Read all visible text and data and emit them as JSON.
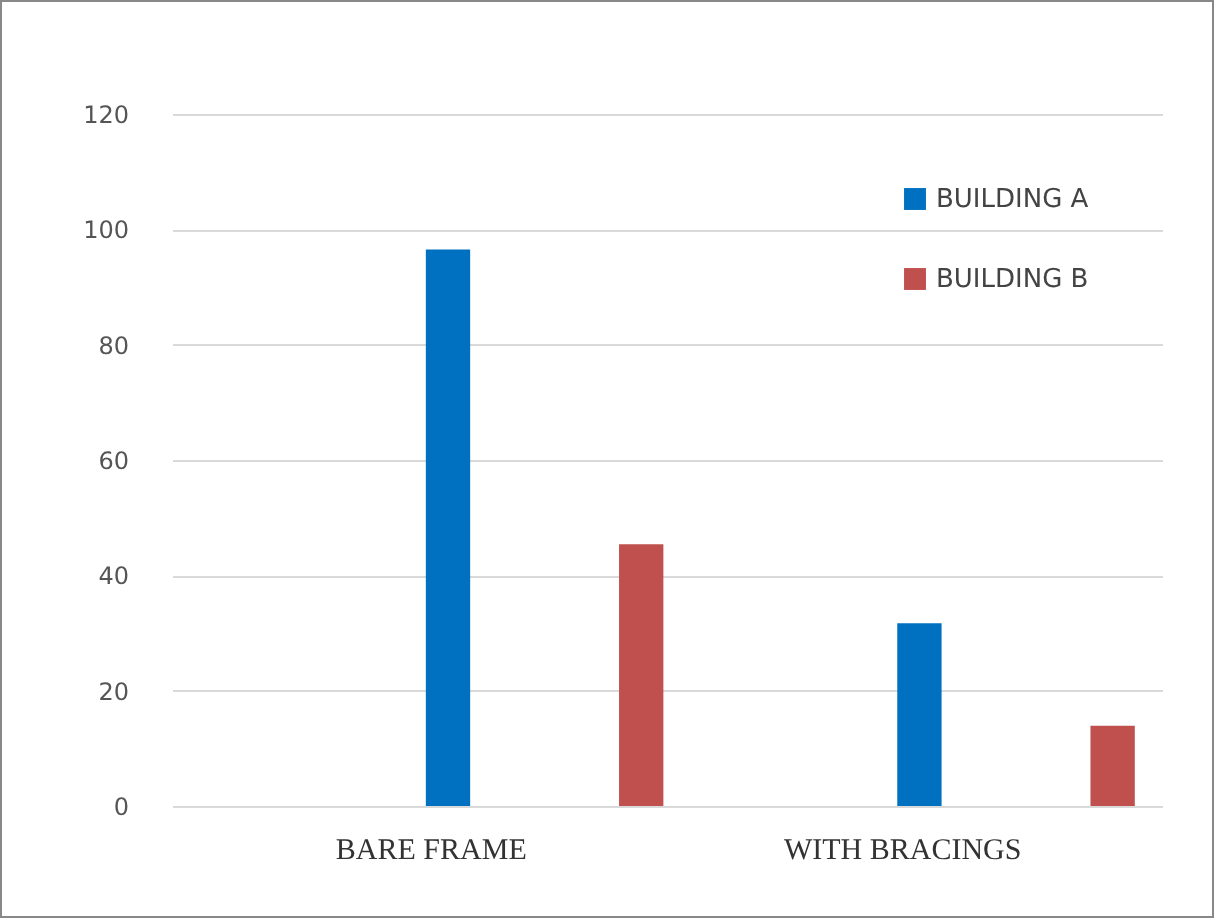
{
  "chart_data": {
    "type": "bar",
    "categories": [
      "BARE FRAME",
      "WITH BRACINGS"
    ],
    "series": [
      {
        "name": "BUILDING A",
        "color": "#0070c0",
        "values": [
          96.5,
          31.7
        ]
      },
      {
        "name": "BUILDING B",
        "color": "#c0504d",
        "values": [
          45.4,
          13.9
        ]
      }
    ],
    "ylim": [
      0,
      120
    ],
    "yticks": [
      0,
      20,
      40,
      60,
      80,
      100,
      120
    ],
    "grid": "y",
    "legend": "top right"
  }
}
